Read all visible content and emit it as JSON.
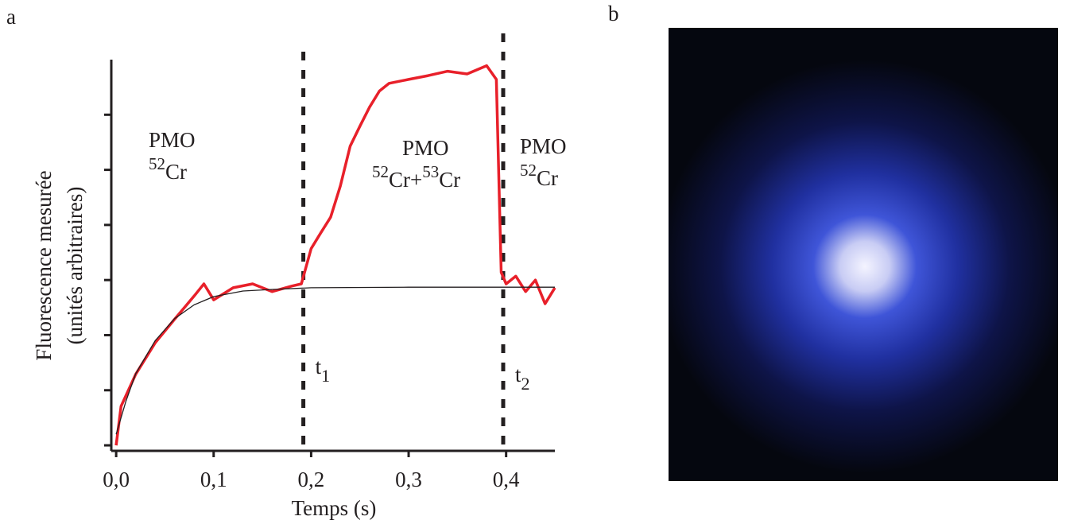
{
  "chart_data": {
    "type": "line",
    "panel_labels": [
      "a",
      "b"
    ],
    "x_label": "Temps (s)",
    "y_label": [
      "Fluorescence mesurée",
      "(unités arbitraires)"
    ],
    "xlim": [
      -0.005,
      0.45
    ],
    "ylim": [
      -0.1,
      7
    ],
    "xticks": [
      {
        "value": 0,
        "label": "0,0"
      },
      {
        "value": 0.1,
        "label": "0,1"
      },
      {
        "value": 0.2,
        "label": "0,2"
      },
      {
        "value": 0.3,
        "label": "0,3"
      },
      {
        "value": 0.4,
        "label": "0,4"
      }
    ],
    "yticks": [
      0,
      1,
      2,
      3,
      4,
      5,
      6
    ],
    "series": [
      {
        "color": "#e8202a",
        "x": [
          0,
          0.005,
          0.02,
          0.04,
          0.06,
          0.08,
          0.09,
          0.1,
          0.12,
          0.14,
          0.16,
          0.18,
          0.19,
          0.2,
          0.21,
          0.22,
          0.23,
          0.24,
          0.25,
          0.26,
          0.27,
          0.28,
          0.3,
          0.32,
          0.34,
          0.36,
          0.38,
          0.39,
          0.395,
          0.4,
          0.41,
          0.42,
          0.43,
          0.44,
          0.45
        ],
        "values": [
          0,
          0.71,
          1.29,
          1.86,
          2.29,
          2.71,
          2.93,
          2.64,
          2.86,
          2.93,
          2.79,
          2.89,
          2.93,
          3.57,
          3.86,
          4.14,
          4.71,
          5.43,
          5.79,
          6.14,
          6.43,
          6.57,
          6.64,
          6.71,
          6.79,
          6.74,
          6.89,
          6.64,
          3.14,
          2.93,
          3.07,
          2.79,
          3.0,
          2.57,
          2.86
        ]
      },
      {
        "color": "#231f20",
        "x": [
          0,
          0.01,
          0.02,
          0.04,
          0.06,
          0.08,
          0.1,
          0.13,
          0.16,
          0.2,
          0.3,
          0.45
        ],
        "values": [
          0.2,
          0.8,
          1.3,
          1.9,
          2.3,
          2.55,
          2.7,
          2.8,
          2.83,
          2.86,
          2.87,
          2.87
        ]
      }
    ],
    "markers": [
      {
        "x": 0.192,
        "label": "t",
        "sub": "1"
      },
      {
        "x": 0.397,
        "label": "t",
        "sub": "2"
      }
    ],
    "annotations": [
      {
        "line1": "PMO",
        "parts": [
          {
            "text": "52",
            "sup": true
          },
          {
            "text": "Cr"
          }
        ]
      },
      {
        "line1": "PMO",
        "parts": [
          {
            "text": "52",
            "sup": true
          },
          {
            "text": "Cr+"
          },
          {
            "text": "53",
            "sup": true
          },
          {
            "text": "Cr"
          }
        ]
      },
      {
        "line1": "PMO",
        "parts": [
          {
            "text": "52",
            "sup": true
          },
          {
            "text": "Cr"
          }
        ]
      }
    ]
  }
}
